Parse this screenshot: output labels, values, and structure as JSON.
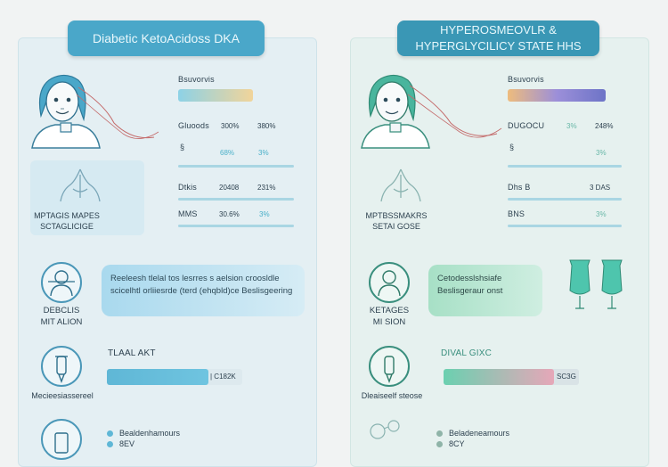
{
  "left": {
    "title": "Diabetic KetoAcidoss DKA",
    "symptoms_label": "Bsuvorvis",
    "rows": [
      {
        "label": "Gluoods",
        "v1": "300%",
        "v2": "380%"
      },
      {
        "label": "§",
        "v1": "68%",
        "v2": "3%"
      },
      {
        "label": "Dtkis",
        "v1": "20408",
        "v2": "231%"
      },
      {
        "label": "MMS",
        "v1": "30.6%",
        "v2": "3%"
      }
    ],
    "figure_caption_1": "MPTAGIS MAPES",
    "figure_caption_2": "SCTAGLICIGE",
    "card_text": "Reeleesh tlelal tos lesrres s aelsion croosldle scicelhtl orliiesrde (terd (ehqbld)ce Beslisgeering",
    "icon1_caption_1": "DEBCLIS",
    "icon1_caption_2": "MIT ALION",
    "tlal_label": "TLAAL AKT",
    "bar_value": "| C182K",
    "icon2_caption": "Mecieesiassereel",
    "legend": [
      "Bealdenhamours",
      "8EV"
    ]
  },
  "right": {
    "title_1": "HYPEROSMEOVLR &",
    "title_2": "HYPERGLYCILICY STATE HHS",
    "symptoms_label": "Bsuvorvis",
    "rows": [
      {
        "label": "DUGOCU",
        "v1": "3%",
        "v2": "248%"
      },
      {
        "label": "§",
        "v1": "",
        "v2": "3%"
      },
      {
        "label": "Dhs B",
        "v1": "",
        "v2": "3 DAS"
      },
      {
        "label": "BNS",
        "v1": "",
        "v2": "3%"
      }
    ],
    "figure_caption_1": "MPTBSSMAKRS",
    "figure_caption_2": "SETAI GOSE",
    "card_text": "Cetodesslshsiafe Beslisgeraur onst",
    "icon1_caption_1": "KETAGES",
    "icon1_caption_2": "MI SION",
    "tlal_label": "DIVAL GIXC",
    "bar_value": "SC3G",
    "icon2_caption": "Dleaiseelf steose",
    "legend": [
      "Beladeneamours",
      "8CY"
    ]
  },
  "colors": {
    "left_accent": "#4aa7c9",
    "right_accent": "#3fb39a"
  }
}
